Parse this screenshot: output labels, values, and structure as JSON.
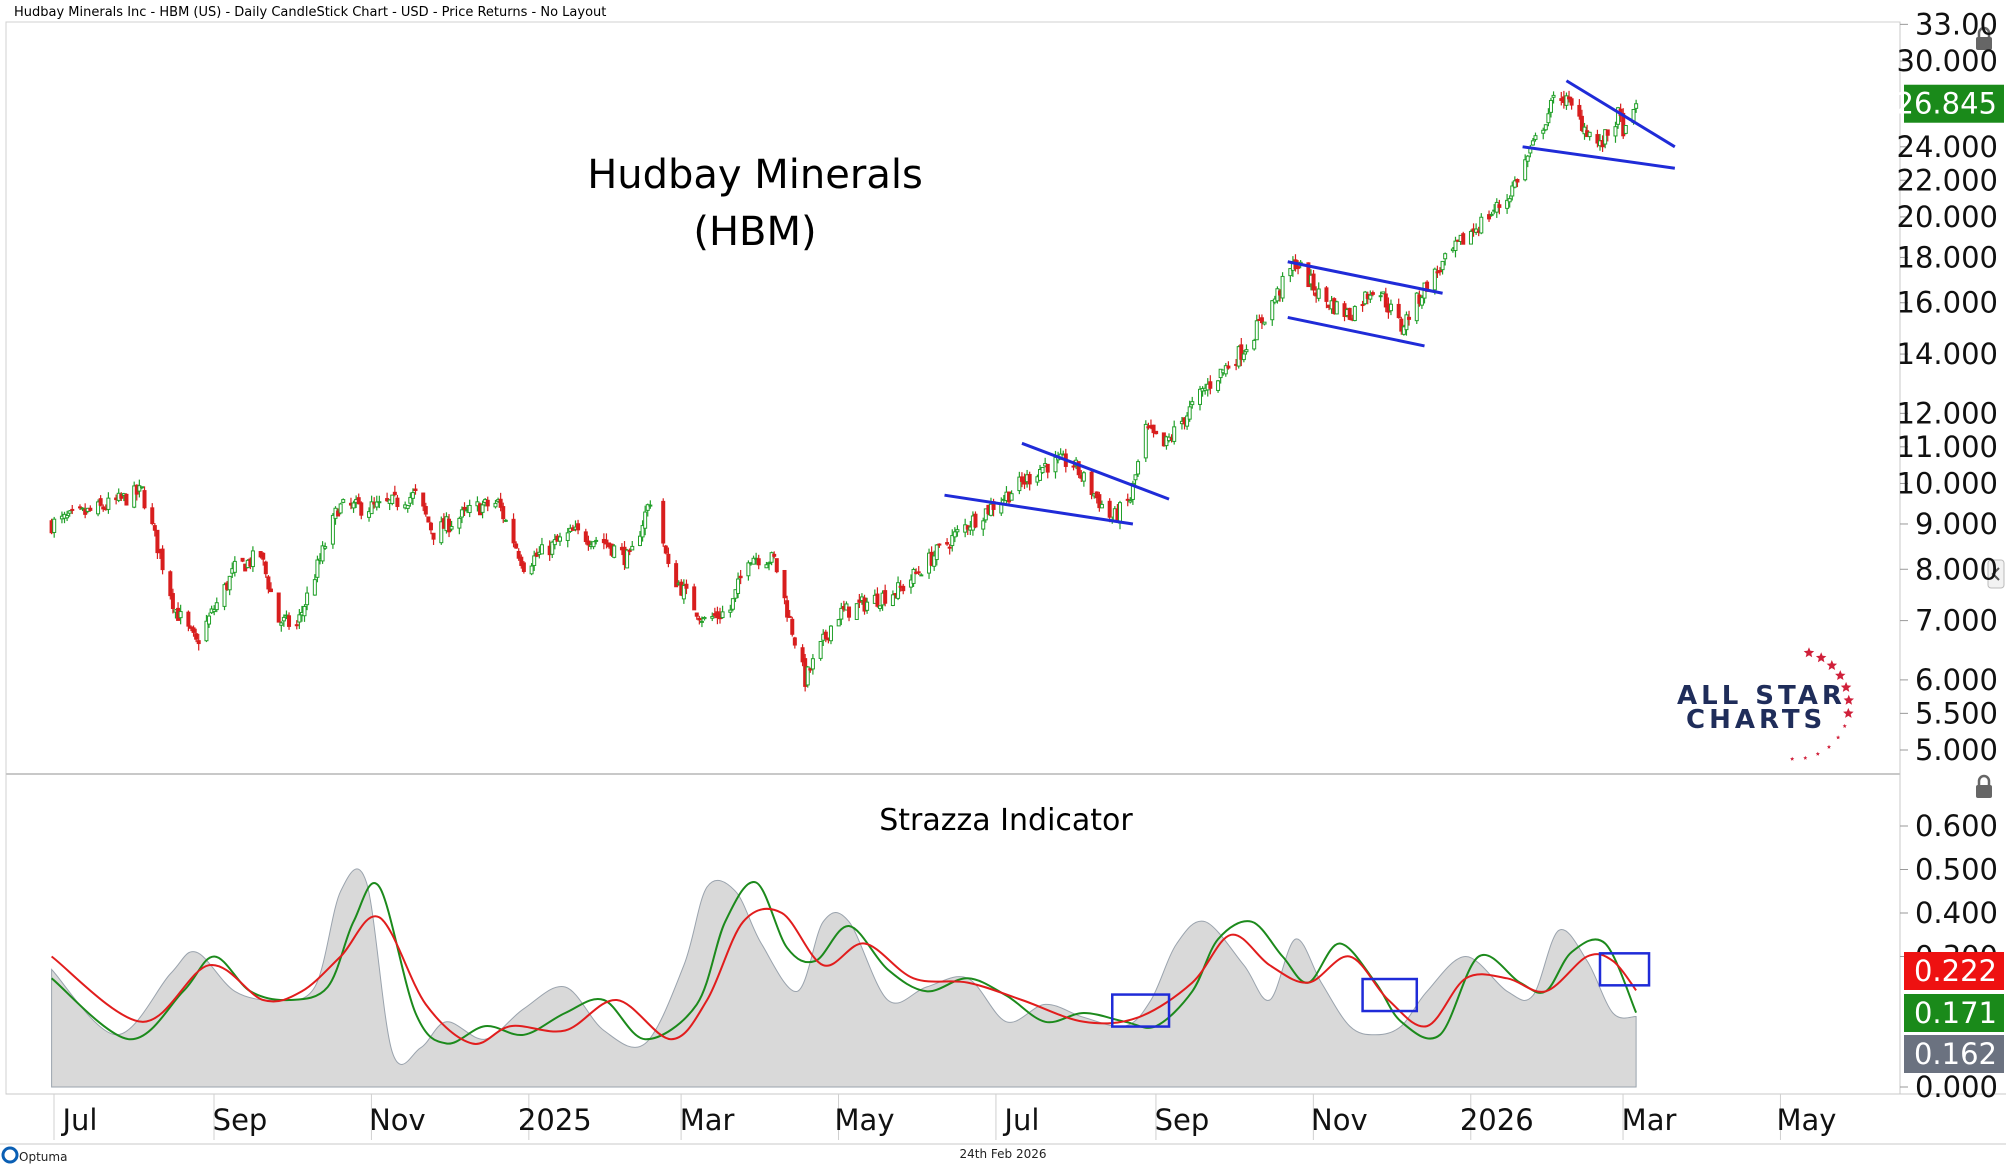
{
  "header": {
    "title": "Hudbay Minerals Inc - HBM (US) - Daily CandleStick Chart - USD - Price Returns - No Layout"
  },
  "footer": {
    "brand": "Optuma",
    "date": "24th Feb 2026"
  },
  "logo": {
    "line1": "ALL STAR",
    "line2": "CHARTS"
  },
  "colors": {
    "up": "#22a02a",
    "down": "#d81e1e",
    "trendline": "#1f2bd8",
    "fast_line": "#1c8a1c",
    "slow_line": "#e11d1d",
    "area": "#d9d9d9",
    "badge_price": "#1a8a1a",
    "badge_red": "#ee1111",
    "badge_green": "#1a8a1a",
    "badge_grey": "#6b7280",
    "box": "#1f2bd8"
  },
  "chart_data": [
    {
      "type": "candlestick",
      "title": "Hudbay Minerals",
      "subtitle": "(HBM)",
      "y_scale": "log",
      "ylim": [
        4.5,
        33
      ],
      "y_ticks": [
        "33.00",
        "30.000",
        "26.845",
        "24.000",
        "22.000",
        "20.000",
        "18.000",
        "16.000",
        "14.000",
        "12.000",
        "11.000",
        "10.000",
        "9.000",
        "8.000",
        "7.000",
        "6.000",
        "5.500",
        "5.000"
      ],
      "x_ticks": [
        "Jul",
        "Sep",
        "Nov",
        "2025",
        "Mar",
        "May",
        "Jul",
        "Sep",
        "Nov",
        "2026",
        "Mar",
        "May"
      ],
      "last_price": "26.845",
      "path": [
        [
          "2024-06-20",
          9.0
        ],
        [
          "2024-07-10",
          9.4
        ],
        [
          "2024-07-25",
          9.8
        ],
        [
          "2024-08-07",
          7.2
        ],
        [
          "2024-08-15",
          6.6
        ],
        [
          "2024-08-30",
          8.0
        ],
        [
          "2024-09-09",
          8.3
        ],
        [
          "2024-09-16",
          7.0
        ],
        [
          "2024-09-23",
          6.9
        ],
        [
          "2024-10-02",
          8.2
        ],
        [
          "2024-10-09",
          9.4
        ],
        [
          "2024-10-25",
          9.4
        ],
        [
          "2024-11-08",
          9.7
        ],
        [
          "2024-11-15",
          8.8
        ],
        [
          "2024-12-02",
          9.4
        ],
        [
          "2024-12-10",
          9.5
        ],
        [
          "2024-12-20",
          8.1
        ],
        [
          "2025-01-08",
          8.8
        ],
        [
          "2025-01-20",
          8.6
        ],
        [
          "2025-01-30",
          8.2
        ],
        [
          "2025-02-07",
          9.6
        ],
        [
          "2025-02-10",
          9.2
        ],
        [
          "2025-02-14",
          8.0
        ],
        [
          "2025-02-28",
          7.0
        ],
        [
          "2025-03-10",
          7.2
        ],
        [
          "2025-03-17",
          8.3
        ],
        [
          "2025-03-27",
          8.2
        ],
        [
          "2025-04-08",
          6.0
        ],
        [
          "2025-04-20",
          7.1
        ],
        [
          "2025-05-05",
          7.4
        ],
        [
          "2025-05-15",
          7.6
        ],
        [
          "2025-05-28",
          8.3
        ],
        [
          "2025-06-10",
          9.0
        ],
        [
          "2025-06-25",
          9.7
        ],
        [
          "2025-07-10",
          10.5
        ],
        [
          "2025-07-20",
          10.6
        ],
        [
          "2025-08-05",
          9.1
        ],
        [
          "2025-08-12",
          9.6
        ],
        [
          "2025-08-18",
          11.5
        ],
        [
          "2025-08-25",
          11.0
        ],
        [
          "2025-09-10",
          12.8
        ],
        [
          "2025-09-25",
          14.2
        ],
        [
          "2025-10-05",
          15.8
        ],
        [
          "2025-10-15",
          17.8
        ],
        [
          "2025-10-25",
          16.2
        ],
        [
          "2025-11-05",
          15.5
        ],
        [
          "2025-11-15",
          16.8
        ],
        [
          "2025-11-25",
          15.0
        ],
        [
          "2025-12-05",
          16.8
        ],
        [
          "2025-12-20",
          19.0
        ],
        [
          "2026-01-05",
          21.0
        ],
        [
          "2026-01-15",
          24.0
        ],
        [
          "2026-01-25",
          27.8
        ],
        [
          "2026-02-01",
          26.0
        ],
        [
          "2026-02-10",
          24.0
        ],
        [
          "2026-02-17",
          26.0
        ],
        [
          "2026-02-21",
          24.5
        ],
        [
          "2026-02-24",
          26.845
        ]
      ],
      "trendlines": [
        [
          [
            "2025-06-01",
            9.7
          ],
          [
            "2025-08-13",
            9.0
          ]
        ],
        [
          [
            "2025-07-01",
            11.1
          ],
          [
            "2025-08-27",
            9.6
          ]
        ],
        [
          [
            "2025-10-12",
            15.4
          ],
          [
            "2025-12-04",
            14.3
          ]
        ],
        [
          [
            "2025-10-12",
            17.8
          ],
          [
            "2025-12-11",
            16.4
          ]
        ],
        [
          [
            "2026-01-11",
            24.0
          ],
          [
            "2026-03-11",
            22.7
          ]
        ],
        [
          [
            "2026-01-28",
            28.5
          ],
          [
            "2026-03-11",
            24.0
          ]
        ]
      ]
    },
    {
      "type": "line",
      "title": "Strazza Indicator",
      "ylim": [
        0,
        0.65
      ],
      "y_ticks": [
        "0.600",
        "0.500",
        "0.400",
        "0.300",
        "0.000"
      ],
      "latest_values": [
        "0.222",
        "0.171",
        "0.162"
      ],
      "series": [
        {
          "x": [
            "2024-06-20",
            "2024-07-15",
            "2024-08-05",
            "2024-08-15",
            "2024-08-30",
            "2024-09-15",
            "2024-09-30",
            "2024-10-10",
            "2024-10-20",
            "2024-10-30",
            "2024-11-10",
            "2024-11-20",
            "2024-12-05",
            "2024-12-20",
            "2025-01-05",
            "2025-01-20",
            "2025-02-05",
            "2025-02-20",
            "2025-03-01",
            "2025-03-12",
            "2025-03-22",
            "2025-04-05",
            "2025-04-15",
            "2025-04-25",
            "2025-05-10",
            "2025-05-25",
            "2025-06-10",
            "2025-06-25",
            "2025-07-10",
            "2025-07-25",
            "2025-08-10",
            "2025-08-20",
            "2025-08-30",
            "2025-09-10",
            "2025-09-25",
            "2025-10-05",
            "2025-10-15",
            "2025-10-25",
            "2025-11-05",
            "2025-11-15",
            "2025-11-25",
            "2025-12-05",
            "2025-12-20",
            "2026-01-05",
            "2026-01-15",
            "2026-01-25",
            "2026-02-05",
            "2026-02-15",
            "2026-02-24"
          ],
          "values": [
            0.27,
            0.12,
            0.26,
            0.31,
            0.22,
            0.2,
            0.23,
            0.45,
            0.47,
            0.08,
            0.09,
            0.15,
            0.11,
            0.18,
            0.23,
            0.13,
            0.1,
            0.28,
            0.46,
            0.45,
            0.33,
            0.22,
            0.38,
            0.38,
            0.2,
            0.23,
            0.25,
            0.15,
            0.19,
            0.16,
            0.14,
            0.2,
            0.33,
            0.38,
            0.28,
            0.2,
            0.34,
            0.24,
            0.14,
            0.12,
            0.14,
            0.22,
            0.3,
            0.22,
            0.21,
            0.36,
            0.29,
            0.17,
            0.162
          ]
        },
        {
          "name": "0.171",
          "x": [
            "2024-06-20",
            "2024-07-20",
            "2024-08-10",
            "2024-08-22",
            "2024-09-05",
            "2024-09-20",
            "2024-10-05",
            "2024-10-15",
            "2024-10-25",
            "2024-11-08",
            "2024-11-20",
            "2024-12-05",
            "2024-12-20",
            "2025-01-05",
            "2025-01-20",
            "2025-02-05",
            "2025-02-25",
            "2025-03-08",
            "2025-03-20",
            "2025-04-01",
            "2025-04-12",
            "2025-04-25",
            "2025-05-10",
            "2025-05-25",
            "2025-06-10",
            "2025-06-25",
            "2025-07-10",
            "2025-07-25",
            "2025-08-10",
            "2025-08-22",
            "2025-09-05",
            "2025-09-15",
            "2025-09-28",
            "2025-10-10",
            "2025-10-20",
            "2025-11-01",
            "2025-11-15",
            "2025-11-25",
            "2025-12-10",
            "2025-12-25",
            "2026-01-10",
            "2026-01-20",
            "2026-01-30",
            "2026-02-12",
            "2026-02-24"
          ],
          "values": [
            0.25,
            0.11,
            0.22,
            0.3,
            0.22,
            0.2,
            0.23,
            0.38,
            0.46,
            0.17,
            0.1,
            0.14,
            0.12,
            0.17,
            0.2,
            0.11,
            0.19,
            0.38,
            0.47,
            0.32,
            0.29,
            0.37,
            0.27,
            0.22,
            0.25,
            0.21,
            0.15,
            0.17,
            0.15,
            0.14,
            0.22,
            0.34,
            0.38,
            0.3,
            0.24,
            0.33,
            0.24,
            0.15,
            0.12,
            0.3,
            0.24,
            0.22,
            0.31,
            0.33,
            0.171
          ]
        },
        {
          "name": "0.222",
          "x": [
            "2024-06-20",
            "2024-07-25",
            "2024-08-20",
            "2024-09-10",
            "2024-09-25",
            "2024-10-10",
            "2024-10-25",
            "2024-11-12",
            "2024-11-30",
            "2024-12-15",
            "2025-01-05",
            "2025-01-25",
            "2025-02-15",
            "2025-03-01",
            "2025-03-15",
            "2025-03-30",
            "2025-04-15",
            "2025-05-01",
            "2025-05-20",
            "2025-06-10",
            "2025-07-01",
            "2025-07-25",
            "2025-08-15",
            "2025-09-05",
            "2025-09-20",
            "2025-10-05",
            "2025-10-20",
            "2025-11-05",
            "2025-11-20",
            "2025-12-05",
            "2025-12-20",
            "2026-01-05",
            "2026-01-20",
            "2026-02-05",
            "2026-02-15",
            "2026-02-24"
          ],
          "values": [
            0.3,
            0.15,
            0.28,
            0.2,
            0.22,
            0.3,
            0.39,
            0.19,
            0.1,
            0.14,
            0.13,
            0.2,
            0.11,
            0.2,
            0.38,
            0.4,
            0.28,
            0.33,
            0.25,
            0.24,
            0.2,
            0.15,
            0.16,
            0.24,
            0.35,
            0.28,
            0.24,
            0.3,
            0.2,
            0.14,
            0.25,
            0.25,
            0.22,
            0.3,
            0.29,
            0.222
          ]
        }
      ],
      "boxes": [
        [
          "2025-08-05",
          "2025-08-27"
        ],
        [
          "2025-11-10",
          "2025-12-01"
        ],
        [
          "2026-02-10",
          "2026-03-01"
        ]
      ]
    }
  ]
}
